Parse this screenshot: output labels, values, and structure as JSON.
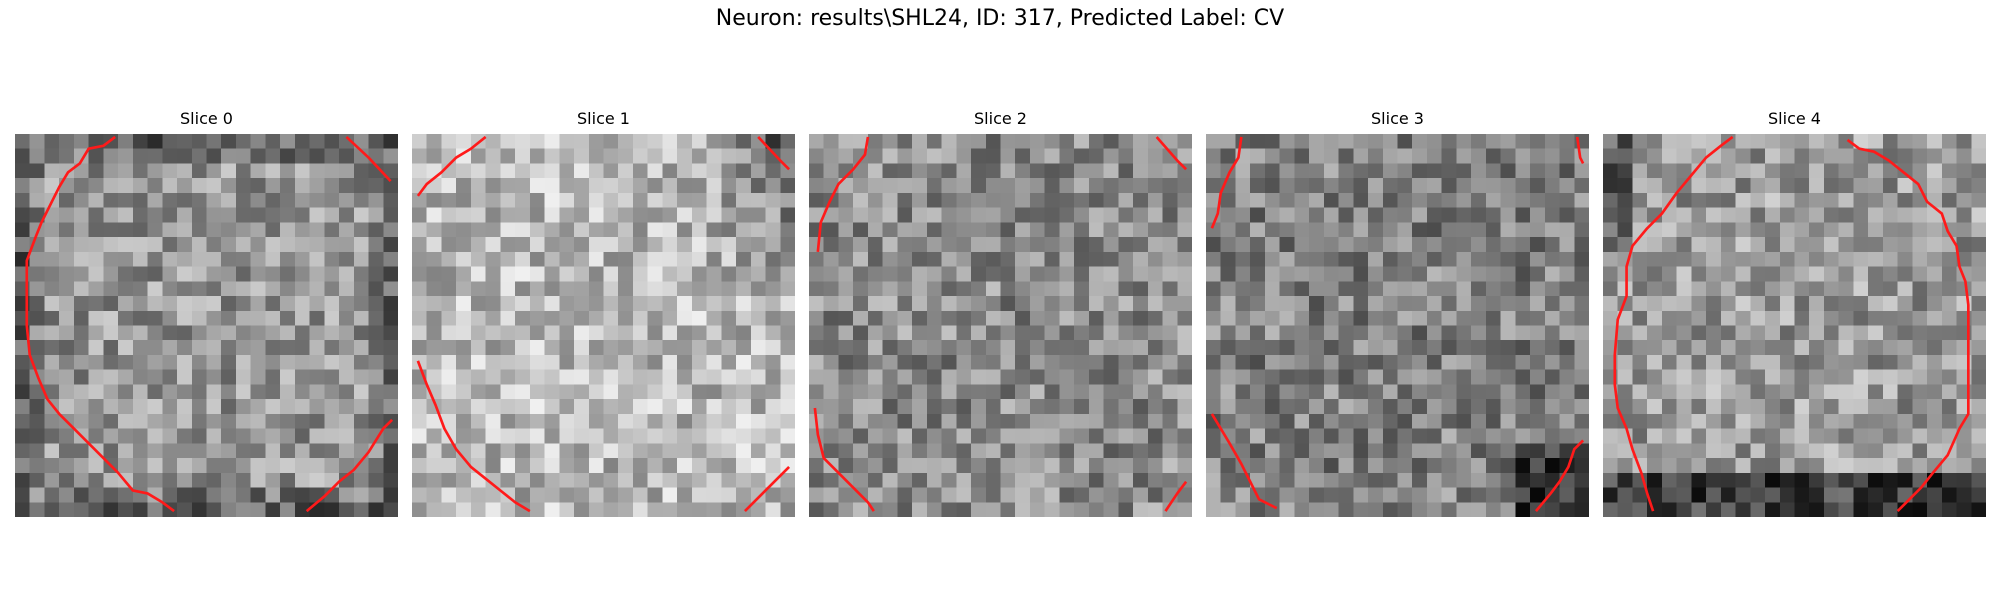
{
  "figure": {
    "title": "Neuron: results\\SHL24, ID: 317, Predicted Label: CV"
  },
  "slices": [
    {
      "label": "Slice 0",
      "base": 150,
      "contour_color": "#ff1a1a"
    },
    {
      "label": "Slice 1",
      "base": 185,
      "contour_color": "#ff1a1a"
    },
    {
      "label": "Slice 2",
      "base": 140,
      "contour_color": "#ff1a1a"
    },
    {
      "label": "Slice 3",
      "base": 130,
      "contour_color": "#ff1a1a"
    },
    {
      "label": "Slice 4",
      "base": 155,
      "contour_color": "#ff1a1a"
    }
  ]
}
